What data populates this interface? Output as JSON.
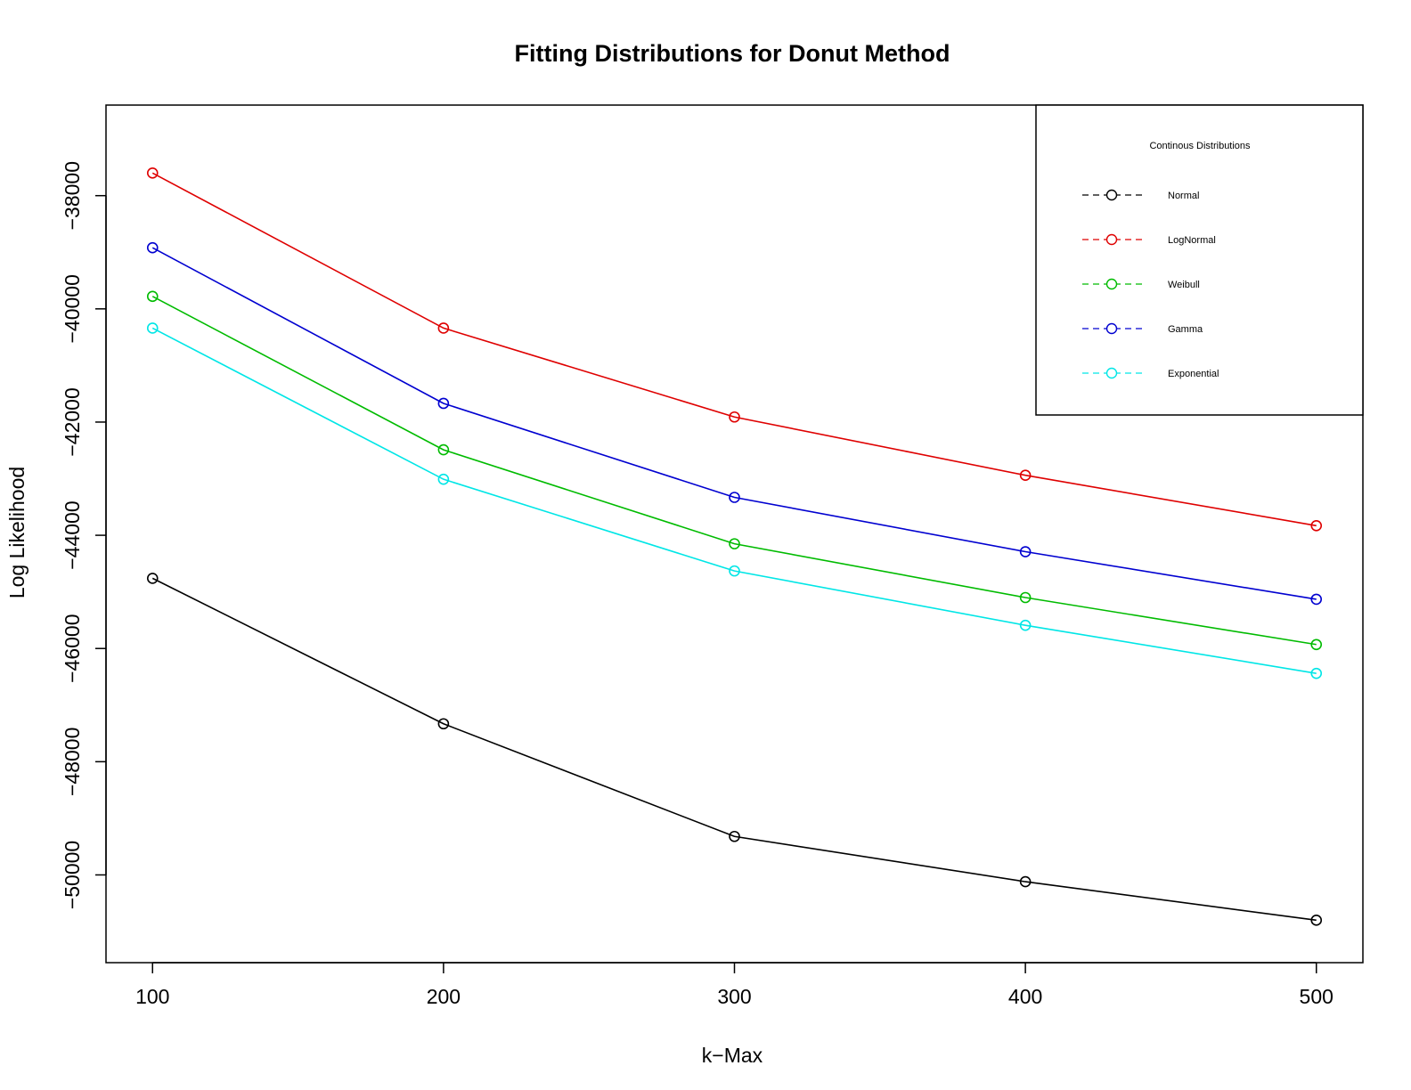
{
  "chart_data": {
    "type": "line",
    "title": "Fitting Distributions for Donut Method",
    "xlabel": "k−Max",
    "ylabel": "Log Likelihood",
    "x": [
      100,
      200,
      300,
      400,
      500
    ],
    "x_tick_labels": [
      "100",
      "200",
      "300",
      "400",
      "500"
    ],
    "y_ticks": [
      -50000,
      -48000,
      -46000,
      -44000,
      -42000,
      -40000,
      -38000
    ],
    "y_tick_labels": [
      "−50000",
      "−48000",
      "−46000",
      "−44000",
      "−42000",
      "−40000",
      "−38000"
    ],
    "xlim": [
      84,
      516
    ],
    "ylim": [
      -51550,
      -36400
    ],
    "grid": false,
    "marker": "circle",
    "legend": {
      "title": "Continous Distributions",
      "position": "top-right"
    },
    "series": [
      {
        "name": "Normal",
        "color": "#000000",
        "values": [
          -44760,
          -47330,
          -49320,
          -50120,
          -50800
        ]
      },
      {
        "name": "LogNormal",
        "color": "#df0000",
        "values": [
          -37600,
          -40340,
          -41910,
          -42940,
          -43830
        ]
      },
      {
        "name": "Weibull",
        "color": "#00bb00",
        "values": [
          -39780,
          -42490,
          -44150,
          -45100,
          -45930
        ]
      },
      {
        "name": "Gamma",
        "color": "#0000d0",
        "values": [
          -38920,
          -41670,
          -43330,
          -44290,
          -45130
        ]
      },
      {
        "name": "Exponential",
        "color": "#00e6e6",
        "values": [
          -40340,
          -43010,
          -44630,
          -45590,
          -46440
        ]
      }
    ]
  }
}
